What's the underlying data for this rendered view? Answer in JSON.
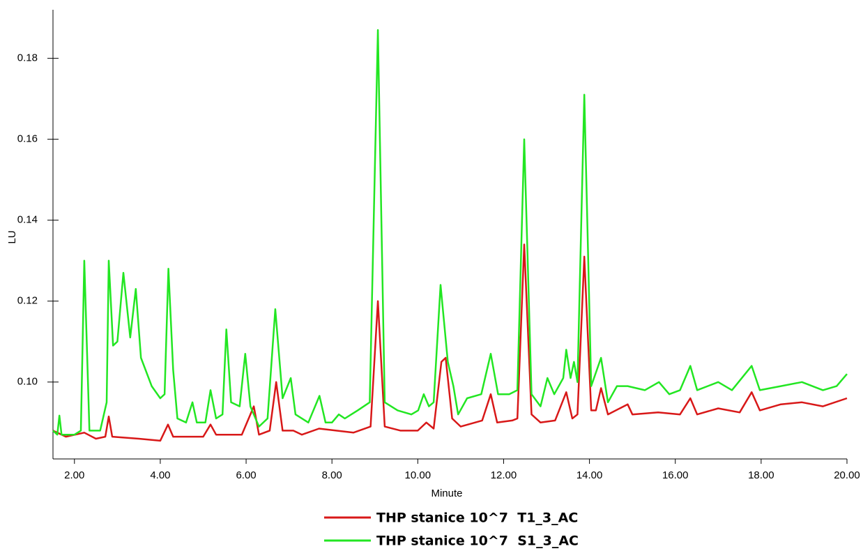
{
  "chart_data": {
    "type": "line",
    "x_label": "Minute",
    "y_label": "LU",
    "xlim": [
      1.5,
      20
    ],
    "ylim": [
      0.081,
      0.192
    ],
    "xticks": [
      {
        "value": 2,
        "label": "2.00"
      },
      {
        "value": 4,
        "label": "4.00"
      },
      {
        "value": 6,
        "label": "6.00"
      },
      {
        "value": 8,
        "label": "8.00"
      },
      {
        "value": 10,
        "label": "10.00"
      },
      {
        "value": 12,
        "label": "12.00"
      },
      {
        "value": 14,
        "label": "14.00"
      },
      {
        "value": 16,
        "label": "16.00"
      },
      {
        "value": 18,
        "label": "18.00"
      },
      {
        "value": 20,
        "label": "20.00"
      }
    ],
    "yticks": [
      {
        "value": 0.1,
        "label": "0.10"
      },
      0.12,
      0.14,
      0.16,
      0.18
    ],
    "legend": "bottom",
    "series": [
      {
        "name": "THP stanice 10^7  T1_3_AC",
        "color": "#d81818",
        "x": [
          1.5,
          1.8,
          2.23,
          2.5,
          2.72,
          2.8,
          2.88,
          3.5,
          4.0,
          4.18,
          4.3,
          5.0,
          5.17,
          5.3,
          5.9,
          6.18,
          6.3,
          6.55,
          6.7,
          6.85,
          7.1,
          7.3,
          7.7,
          8.5,
          8.9,
          9.07,
          9.23,
          9.6,
          10.0,
          10.2,
          10.37,
          10.55,
          10.65,
          10.8,
          11.0,
          11.5,
          11.7,
          11.85,
          12.2,
          12.32,
          12.48,
          12.65,
          12.86,
          13.2,
          13.46,
          13.6,
          13.72,
          13.88,
          14.04,
          14.15,
          14.27,
          14.43,
          14.89,
          15.0,
          15.6,
          16.11,
          16.35,
          16.51,
          17.0,
          17.5,
          17.78,
          17.97,
          18.46,
          18.95,
          19.44,
          20.0
        ],
        "values": [
          0.088,
          0.0865,
          0.0875,
          0.086,
          0.0865,
          0.0915,
          0.0865,
          0.086,
          0.0855,
          0.0895,
          0.0865,
          0.0865,
          0.0895,
          0.087,
          0.087,
          0.094,
          0.087,
          0.088,
          0.1,
          0.088,
          0.088,
          0.087,
          0.0885,
          0.0875,
          0.089,
          0.12,
          0.089,
          0.088,
          0.088,
          0.09,
          0.0885,
          0.105,
          0.106,
          0.091,
          0.089,
          0.0905,
          0.097,
          0.09,
          0.0905,
          0.091,
          0.134,
          0.092,
          0.09,
          0.0905,
          0.0975,
          0.091,
          0.092,
          0.131,
          0.093,
          0.093,
          0.0985,
          0.092,
          0.0945,
          0.092,
          0.0925,
          0.092,
          0.096,
          0.092,
          0.0935,
          0.0925,
          0.0975,
          0.093,
          0.0945,
          0.095,
          0.094,
          0.096
        ]
      },
      {
        "name": "THP stanice 10^7  S1_3_AC",
        "color": "#22e622",
        "x": [
          1.5,
          1.6,
          1.65,
          1.7,
          2.0,
          2.15,
          2.23,
          2.35,
          2.6,
          2.75,
          2.8,
          2.9,
          3.0,
          3.14,
          3.3,
          3.43,
          3.55,
          3.8,
          4.0,
          4.1,
          4.19,
          4.3,
          4.4,
          4.6,
          4.75,
          4.85,
          5.05,
          5.17,
          5.3,
          5.45,
          5.54,
          5.65,
          5.85,
          5.98,
          6.1,
          6.3,
          6.5,
          6.68,
          6.85,
          7.04,
          7.15,
          7.45,
          7.71,
          7.85,
          8.0,
          8.16,
          8.3,
          8.6,
          8.88,
          9.07,
          9.23,
          9.53,
          9.85,
          10.01,
          10.14,
          10.26,
          10.37,
          10.53,
          10.7,
          10.83,
          10.94,
          11.15,
          11.48,
          11.7,
          11.87,
          12.13,
          12.32,
          12.48,
          12.65,
          12.86,
          13.02,
          13.18,
          13.39,
          13.46,
          13.56,
          13.64,
          13.72,
          13.88,
          14.04,
          14.27,
          14.43,
          14.64,
          14.89,
          15.29,
          15.62,
          15.86,
          16.11,
          16.35,
          16.51,
          17.0,
          17.32,
          17.78,
          17.97,
          18.46,
          18.95,
          19.44,
          19.76,
          20.0
        ],
        "values": [
          0.088,
          0.087,
          0.0917,
          0.087,
          0.087,
          0.088,
          0.13,
          0.088,
          0.088,
          0.095,
          0.13,
          0.109,
          0.11,
          0.127,
          0.111,
          0.123,
          0.106,
          0.099,
          0.096,
          0.097,
          0.128,
          0.103,
          0.091,
          0.09,
          0.095,
          0.09,
          0.09,
          0.098,
          0.091,
          0.092,
          0.113,
          0.095,
          0.094,
          0.107,
          0.094,
          0.089,
          0.091,
          0.118,
          0.096,
          0.101,
          0.092,
          0.09,
          0.0966,
          0.09,
          0.09,
          0.092,
          0.091,
          0.093,
          0.095,
          0.187,
          0.095,
          0.093,
          0.092,
          0.093,
          0.097,
          0.094,
          0.095,
          0.124,
          0.105,
          0.099,
          0.092,
          0.096,
          0.097,
          0.107,
          0.097,
          0.097,
          0.098,
          0.16,
          0.097,
          0.094,
          0.101,
          0.097,
          0.101,
          0.108,
          0.101,
          0.105,
          0.1,
          0.171,
          0.099,
          0.106,
          0.095,
          0.099,
          0.099,
          0.098,
          0.1,
          0.097,
          0.098,
          0.104,
          0.098,
          0.1,
          0.098,
          0.104,
          0.098,
          0.099,
          0.1,
          0.098,
          0.099,
          0.102
        ]
      }
    ]
  }
}
